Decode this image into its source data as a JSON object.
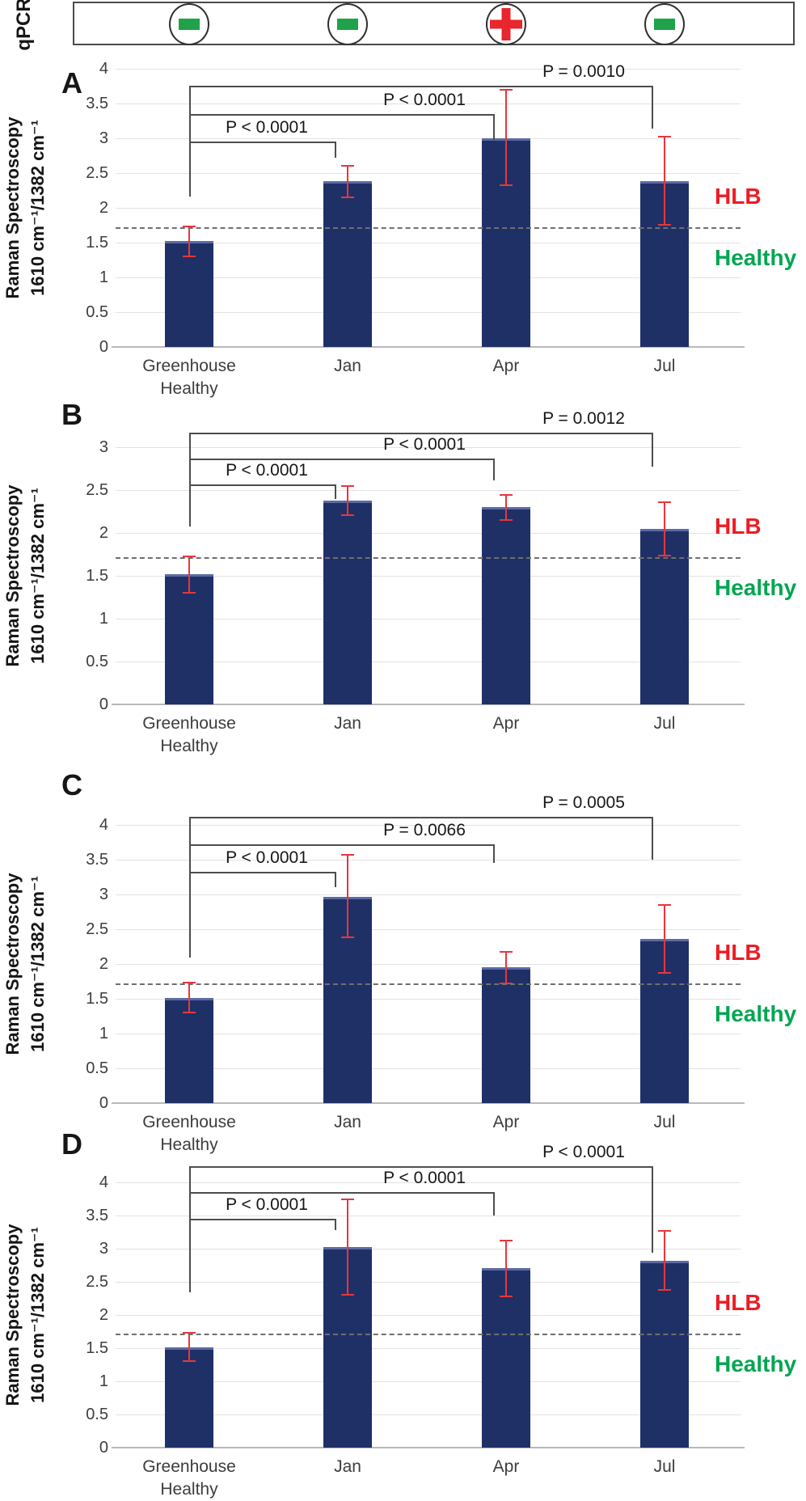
{
  "qpcr": {
    "label": "qPCR",
    "results": [
      {
        "category": "Greenhouse Healthy",
        "result": "negative",
        "symbol": "minus"
      },
      {
        "category": "Jan",
        "result": "negative",
        "symbol": "minus"
      },
      {
        "category": "Apr",
        "result": "positive",
        "symbol": "plus"
      },
      {
        "category": "Jul",
        "result": "negative",
        "symbol": "minus"
      }
    ]
  },
  "axis": {
    "ylabel_line1": "Raman Spectroscopy",
    "ylabel_line2": "1610 cm⁻¹/1382 cm⁻¹"
  },
  "threshold": {
    "value": 1.72,
    "above_label": "HLB",
    "below_label": "Healthy"
  },
  "categories_lines": [
    [
      "Greenhouse",
      "Healthy"
    ],
    [
      "Jan"
    ],
    [
      "Apr"
    ],
    [
      "Jul"
    ]
  ],
  "colors": {
    "bar": "#1f3066",
    "bar_top_edge": "#5c6aa5",
    "error": "#e8363c",
    "hlb": "#ed1c24",
    "healthy": "#00a651",
    "qpcr_minus": "#1fa24a",
    "qpcr_plus": "#e8262d",
    "grid": "#e2e2e4",
    "baseline": "#b9b9b9",
    "bracket": "#4d4d4d",
    "dashed": "#6f6f6f"
  },
  "chart_data": [
    {
      "panel": "A",
      "type": "bar",
      "categories": [
        "Greenhouse Healthy",
        "Jan",
        "Apr",
        "Jul"
      ],
      "values": [
        1.52,
        2.38,
        3.0,
        2.38
      ],
      "error_low": [
        1.3,
        2.15,
        2.32,
        1.76
      ],
      "error_high": [
        1.73,
        2.6,
        3.7,
        3.02
      ],
      "ylim": [
        0,
        4
      ],
      "ytick_step": 0.5,
      "grid": true,
      "ylabel": "Raman Spectroscopy 1610 cm⁻¹/1382 cm⁻¹",
      "threshold_line": 1.72,
      "comparisons": [
        {
          "from": "Greenhouse Healthy",
          "to": "Jan",
          "label": "P < 0.0001"
        },
        {
          "from": "Greenhouse Healthy",
          "to": "Apr",
          "label": "P < 0.0001"
        },
        {
          "from": "Greenhouse Healthy",
          "to": "Jul",
          "label": "P = 0.0010"
        }
      ]
    },
    {
      "panel": "B",
      "type": "bar",
      "categories": [
        "Greenhouse Healthy",
        "Jan",
        "Apr",
        "Jul"
      ],
      "values": [
        1.52,
        2.38,
        2.3,
        2.05
      ],
      "error_low": [
        1.3,
        2.21,
        2.15,
        1.74
      ],
      "error_high": [
        1.73,
        2.55,
        2.44,
        2.36
      ],
      "ylim": [
        0,
        3
      ],
      "ytick_step": 0.5,
      "grid": true,
      "ylabel": "Raman Spectroscopy 1610 cm⁻¹/1382 cm⁻¹",
      "threshold_line": 1.72,
      "comparisons": [
        {
          "from": "Greenhouse Healthy",
          "to": "Jan",
          "label": "P < 0.0001"
        },
        {
          "from": "Greenhouse Healthy",
          "to": "Apr",
          "label": "P < 0.0001"
        },
        {
          "from": "Greenhouse Healthy",
          "to": "Jul",
          "label": "P = 0.0012"
        }
      ]
    },
    {
      "panel": "C",
      "type": "bar",
      "categories": [
        "Greenhouse Healthy",
        "Jan",
        "Apr",
        "Jul"
      ],
      "values": [
        1.51,
        2.97,
        1.95,
        2.36
      ],
      "error_low": [
        1.3,
        2.38,
        1.72,
        1.87
      ],
      "error_high": [
        1.73,
        3.57,
        2.18,
        2.85
      ],
      "ylim": [
        0,
        4
      ],
      "ytick_step": 0.5,
      "grid": true,
      "ylabel": "Raman Spectroscopy 1610 cm⁻¹/1382 cm⁻¹",
      "threshold_line": 1.72,
      "comparisons": [
        {
          "from": "Greenhouse Healthy",
          "to": "Jan",
          "label": "P < 0.0001"
        },
        {
          "from": "Greenhouse Healthy",
          "to": "Apr",
          "label": "P = 0.0066"
        },
        {
          "from": "Greenhouse Healthy",
          "to": "Jul",
          "label": "P = 0.0005"
        }
      ]
    },
    {
      "panel": "D",
      "type": "bar",
      "categories": [
        "Greenhouse Healthy",
        "Jan",
        "Apr",
        "Jul"
      ],
      "values": [
        1.51,
        3.03,
        2.71,
        2.82
      ],
      "error_low": [
        1.3,
        2.3,
        2.28,
        2.38
      ],
      "error_high": [
        1.73,
        3.75,
        3.12,
        3.27
      ],
      "ylim": [
        0,
        4
      ],
      "ytick_step": 0.5,
      "grid": true,
      "ylabel": "Raman Spectroscopy 1610 cm⁻¹/1382 cm⁻¹",
      "threshold_line": 1.72,
      "comparisons": [
        {
          "from": "Greenhouse Healthy",
          "to": "Jan",
          "label": "P < 0.0001"
        },
        {
          "from": "Greenhouse Healthy",
          "to": "Apr",
          "label": "P < 0.0001"
        },
        {
          "from": "Greenhouse Healthy",
          "to": "Jul",
          "label": "P < 0.0001"
        }
      ]
    }
  ]
}
